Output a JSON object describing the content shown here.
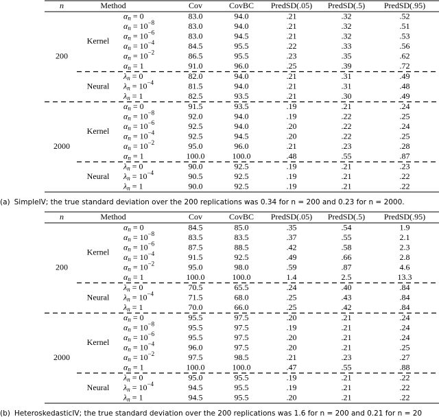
{
  "tables": [
    {
      "header": [
        "n",
        "Method",
        "Cov",
        "CovBC",
        "PredSD(.05)",
        "PredSD(.5)",
        "PredSD(.95)"
      ],
      "groups": [
        {
          "n": "200",
          "blocks": [
            {
              "method": "Kernel",
              "rows": [
                {
                  "param": {
                    "sym": "α",
                    "sub": "n",
                    "rhs": "= 0"
                  },
                  "values": [
                    "83.0",
                    "94.0",
                    ".21",
                    ".32",
                    ".52"
                  ]
                },
                {
                  "param": {
                    "sym": "α",
                    "sub": "n",
                    "rhs": "= 10",
                    "exp": "−8"
                  },
                  "values": [
                    "83.0",
                    "94.0",
                    ".21",
                    ".32",
                    ".51"
                  ]
                },
                {
                  "param": {
                    "sym": "α",
                    "sub": "n",
                    "rhs": "= 10",
                    "exp": "−6"
                  },
                  "values": [
                    "83.0",
                    "94.5",
                    ".21",
                    ".32",
                    ".53"
                  ]
                },
                {
                  "param": {
                    "sym": "α",
                    "sub": "n",
                    "rhs": "= 10",
                    "exp": "−4"
                  },
                  "values": [
                    "84.5",
                    "95.5",
                    ".22",
                    ".33",
                    ".56"
                  ]
                },
                {
                  "param": {
                    "sym": "α",
                    "sub": "n",
                    "rhs": "= 10",
                    "exp": "−2"
                  },
                  "values": [
                    "86.5",
                    "95.5",
                    ".23",
                    ".35",
                    ".62"
                  ]
                },
                {
                  "param": {
                    "sym": "α",
                    "sub": "n",
                    "rhs": "= 1"
                  },
                  "values": [
                    "91.0",
                    "96.0",
                    ".25",
                    ".39",
                    ".72"
                  ]
                }
              ]
            },
            {
              "method": "Neural",
              "rows": [
                {
                  "param": {
                    "sym": "λ",
                    "sub": "n",
                    "rhs": "= 0"
                  },
                  "values": [
                    "82.0",
                    "94.0",
                    ".21",
                    ".31",
                    ".49"
                  ]
                },
                {
                  "param": {
                    "sym": "λ",
                    "sub": "n",
                    "rhs": "= 10",
                    "exp": "−4"
                  },
                  "values": [
                    "81.5",
                    "94.0",
                    ".21",
                    ".31",
                    ".48"
                  ]
                },
                {
                  "param": {
                    "sym": "λ",
                    "sub": "n",
                    "rhs": "= 1"
                  },
                  "values": [
                    "82.5",
                    "93.5",
                    ".21",
                    ".30",
                    ".49"
                  ]
                }
              ]
            }
          ]
        },
        {
          "n": "2000",
          "blocks": [
            {
              "method": "Kernel",
              "rows": [
                {
                  "param": {
                    "sym": "α",
                    "sub": "n",
                    "rhs": "= 0"
                  },
                  "values": [
                    "91.5",
                    "93.5",
                    ".19",
                    ".21",
                    ".24"
                  ]
                },
                {
                  "param": {
                    "sym": "α",
                    "sub": "n",
                    "rhs": "= 10",
                    "exp": "−8"
                  },
                  "values": [
                    "92.0",
                    "94.0",
                    ".19",
                    ".22",
                    ".25"
                  ]
                },
                {
                  "param": {
                    "sym": "α",
                    "sub": "n",
                    "rhs": "= 10",
                    "exp": "−6"
                  },
                  "values": [
                    "92.5",
                    "94.0",
                    ".20",
                    ".22",
                    ".24"
                  ]
                },
                {
                  "param": {
                    "sym": "α",
                    "sub": "n",
                    "rhs": "= 10",
                    "exp": "−4"
                  },
                  "values": [
                    "92.5",
                    "94.5",
                    ".20",
                    ".22",
                    ".25"
                  ]
                },
                {
                  "param": {
                    "sym": "α",
                    "sub": "n",
                    "rhs": "= 10",
                    "exp": "−2"
                  },
                  "values": [
                    "95.0",
                    "96.0",
                    ".21",
                    ".23",
                    ".28"
                  ]
                },
                {
                  "param": {
                    "sym": "α",
                    "sub": "n",
                    "rhs": "= 1"
                  },
                  "values": [
                    "100.0",
                    "100.0",
                    ".48",
                    ".55",
                    ".87"
                  ]
                }
              ]
            },
            {
              "method": "Neural",
              "rows": [
                {
                  "param": {
                    "sym": "λ",
                    "sub": "n",
                    "rhs": "= 0"
                  },
                  "values": [
                    "90.0",
                    "92.5",
                    ".19",
                    ".21",
                    ".23"
                  ]
                },
                {
                  "param": {
                    "sym": "λ",
                    "sub": "n",
                    "rhs": "= 10",
                    "exp": "−4"
                  },
                  "values": [
                    "90.5",
                    "92.5",
                    ".19",
                    ".21",
                    ".22"
                  ]
                },
                {
                  "param": {
                    "sym": "λ",
                    "sub": "n",
                    "rhs": "= 1"
                  },
                  "values": [
                    "90.0",
                    "92.5",
                    ".19",
                    ".21",
                    ".22"
                  ]
                }
              ]
            }
          ]
        }
      ],
      "caption": {
        "label": "(a)",
        "text": "SimpleIV; the true standard deviation over the 200 replications was 0.34 for n = 200 and 0.23 for n = 2000."
      }
    },
    {
      "header": [
        "n",
        "Method",
        "Cov",
        "CovBC",
        "PredSD(.05)",
        "PredSD(.5)",
        "PredSD(.95)"
      ],
      "groups": [
        {
          "n": "200",
          "blocks": [
            {
              "method": "Kernel",
              "rows": [
                {
                  "param": {
                    "sym": "α",
                    "sub": "n",
                    "rhs": "= 0"
                  },
                  "values": [
                    "84.5",
                    "85.0",
                    ".35",
                    ".54",
                    "1.9"
                  ]
                },
                {
                  "param": {
                    "sym": "α",
                    "sub": "n",
                    "rhs": "= 10",
                    "exp": "−8"
                  },
                  "values": [
                    "83.5",
                    "83.5",
                    ".37",
                    ".55",
                    "2.1"
                  ]
                },
                {
                  "param": {
                    "sym": "α",
                    "sub": "n",
                    "rhs": "= 10",
                    "exp": "−6"
                  },
                  "values": [
                    "87.5",
                    "88.5",
                    ".42",
                    ".58",
                    "2.3"
                  ]
                },
                {
                  "param": {
                    "sym": "α",
                    "sub": "n",
                    "rhs": "= 10",
                    "exp": "−4"
                  },
                  "values": [
                    "91.5",
                    "92.5",
                    ".49",
                    ".66",
                    "2.8"
                  ]
                },
                {
                  "param": {
                    "sym": "α",
                    "sub": "n",
                    "rhs": "= 10",
                    "exp": "−2"
                  },
                  "values": [
                    "95.0",
                    "98.0",
                    ".59",
                    ".87",
                    "4.6"
                  ]
                },
                {
                  "param": {
                    "sym": "α",
                    "sub": "n",
                    "rhs": "= 1"
                  },
                  "values": [
                    "100.0",
                    "100.0",
                    "1.4",
                    "2.5",
                    "13.3"
                  ]
                }
              ]
            },
            {
              "method": "Neural",
              "rows": [
                {
                  "param": {
                    "sym": "λ",
                    "sub": "n",
                    "rhs": "= 0"
                  },
                  "values": [
                    "70.5",
                    "65.5",
                    ".24",
                    ".40",
                    ".84"
                  ]
                },
                {
                  "param": {
                    "sym": "λ",
                    "sub": "n",
                    "rhs": "= 10",
                    "exp": "−4"
                  },
                  "values": [
                    "71.5",
                    "68.0",
                    ".25",
                    ".43",
                    ".84"
                  ]
                },
                {
                  "param": {
                    "sym": "λ",
                    "sub": "n",
                    "rhs": "= 1"
                  },
                  "values": [
                    "70.0",
                    "66.0",
                    ".25",
                    ".42",
                    ".84"
                  ]
                }
              ]
            }
          ]
        },
        {
          "n": "2000",
          "blocks": [
            {
              "method": "Kernel",
              "rows": [
                {
                  "param": {
                    "sym": "α",
                    "sub": "n",
                    "rhs": "= 0"
                  },
                  "values": [
                    "95.5",
                    "97.5",
                    ".20",
                    ".21",
                    ".24"
                  ]
                },
                {
                  "param": {
                    "sym": "α",
                    "sub": "n",
                    "rhs": "= 10",
                    "exp": "−8"
                  },
                  "values": [
                    "95.5",
                    "97.5",
                    ".19",
                    ".21",
                    ".24"
                  ]
                },
                {
                  "param": {
                    "sym": "α",
                    "sub": "n",
                    "rhs": "= 10",
                    "exp": "−6"
                  },
                  "values": [
                    "95.5",
                    "97.5",
                    ".20",
                    ".21",
                    ".24"
                  ]
                },
                {
                  "param": {
                    "sym": "α",
                    "sub": "n",
                    "rhs": "= 10",
                    "exp": "−4"
                  },
                  "values": [
                    "96.0",
                    "97.5",
                    ".20",
                    ".21",
                    ".25"
                  ]
                },
                {
                  "param": {
                    "sym": "α",
                    "sub": "n",
                    "rhs": "= 10",
                    "exp": "−2"
                  },
                  "values": [
                    "97.5",
                    "98.5",
                    ".21",
                    ".23",
                    ".27"
                  ]
                },
                {
                  "param": {
                    "sym": "α",
                    "sub": "n",
                    "rhs": "= 1"
                  },
                  "values": [
                    "100.0",
                    "100.0",
                    ".47",
                    ".55",
                    ".88"
                  ]
                }
              ]
            },
            {
              "method": "Neural",
              "rows": [
                {
                  "param": {
                    "sym": "λ",
                    "sub": "n",
                    "rhs": "= 0"
                  },
                  "values": [
                    "95.0",
                    "95.5",
                    ".19",
                    ".21",
                    ".22"
                  ]
                },
                {
                  "param": {
                    "sym": "λ",
                    "sub": "n",
                    "rhs": "= 10",
                    "exp": "−4"
                  },
                  "values": [
                    "94.5",
                    "95.5",
                    ".19",
                    ".21",
                    ".22"
                  ]
                },
                {
                  "param": {
                    "sym": "λ",
                    "sub": "n",
                    "rhs": "= 1"
                  },
                  "values": [
                    "94.5",
                    "95.5",
                    ".20",
                    ".21",
                    ".22"
                  ]
                }
              ]
            }
          ]
        }
      ],
      "caption": {
        "label": "(b)",
        "text": "HeteroskedasticIV; the true standard deviation over the 200 replications was 1.6 for n = 200 and 0.21 for n = 20"
      }
    }
  ]
}
